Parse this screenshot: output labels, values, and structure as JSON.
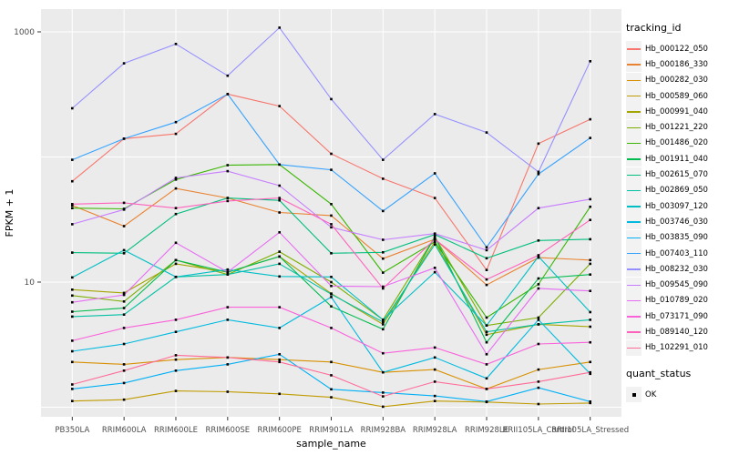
{
  "chart_data": {
    "type": "line",
    "title": "",
    "xlabel": "sample_name",
    "ylabel": "FPKM + 1",
    "y_scale": "log10",
    "ylim": [
      1,
      1300
    ],
    "y_tick_labels": [
      "1000",
      "10"
    ],
    "y_tick_values": [
      1000,
      10
    ],
    "y_gridline_values": [
      1,
      10,
      100,
      1000
    ],
    "grid": true,
    "legend_position": "right",
    "panel_bg": "#ebebeb",
    "grid_color": "#ffffff",
    "axis_text_color": "#4d4d4d",
    "tick_color": "#333333",
    "point_color": "#000000",
    "categories": [
      "PB350LA",
      "RRIM600LA",
      "RRIM600LE",
      "RRIM600SE",
      "RRIM600PE",
      "RRIM901LA",
      "RRIM928BA",
      "RRIM928LA",
      "RRIM928LE",
      "RRII105LA_Control",
      "RRII105LA_Stressed"
    ],
    "series": [
      {
        "name": "Hb_000122_050",
        "color": "#F8766D",
        "values": [
          64,
          140,
          153,
          318,
          255,
          106,
          67,
          47,
          12.5,
          128,
          200
        ]
      },
      {
        "name": "Hb_000186_330",
        "color": "#EA8331",
        "values": [
          41,
          28,
          56,
          47,
          36,
          34,
          15.4,
          22,
          9.5,
          15.7,
          15
        ]
      },
      {
        "name": "Hb_000282_030",
        "color": "#D89000",
        "values": [
          2.3,
          2.2,
          2.4,
          2.5,
          2.4,
          2.3,
          1.9,
          2.0,
          1.4,
          2.0,
          2.3
        ]
      },
      {
        "name": "Hb_000589_060",
        "color": "#C09B00",
        "values": [
          1.12,
          1.15,
          1.35,
          1.33,
          1.28,
          1.2,
          1.01,
          1.12,
          1.1,
          1.06,
          1.08
        ]
      },
      {
        "name": "Hb_000991_040",
        "color": "#A3A500",
        "values": [
          8.7,
          8.2,
          14,
          12,
          16,
          8.1,
          4.6,
          21,
          3.8,
          4.6,
          4.4
        ]
      },
      {
        "name": "Hb_001221_220",
        "color": "#7CAE00",
        "values": [
          7.8,
          7.0,
          15,
          11.5,
          17.5,
          10,
          5.0,
          23,
          4.5,
          5.2,
          14
        ]
      },
      {
        "name": "Hb_001486_020",
        "color": "#39B600",
        "values": [
          39,
          38.5,
          66,
          86,
          87,
          42,
          11.9,
          21,
          5.2,
          9.6,
          40
        ]
      },
      {
        "name": "Hb_001911_040",
        "color": "#00BB4E",
        "values": [
          5.8,
          6.2,
          15,
          12,
          16,
          6.4,
          4.2,
          23,
          3.3,
          10.7,
          11.5
        ]
      },
      {
        "name": "Hb_002615_070",
        "color": "#00BF7D",
        "values": [
          17.2,
          17,
          35,
          47,
          45,
          17,
          17.3,
          24,
          15.5,
          21.5,
          22
        ]
      },
      {
        "name": "Hb_002869_050",
        "color": "#00C1A3",
        "values": [
          5.3,
          5.5,
          11,
          11.5,
          14,
          8.0,
          4.8,
          20,
          4.0,
          4.6,
          5.0
        ]
      },
      {
        "name": "Hb_003097_120",
        "color": "#00BFC4",
        "values": [
          10.9,
          18,
          11,
          12.6,
          11.1,
          11,
          5.0,
          12,
          4.5,
          16,
          5.75
        ]
      },
      {
        "name": "Hb_003746_030",
        "color": "#00BAE0",
        "values": [
          2.8,
          3.2,
          4.0,
          5.0,
          4.3,
          7.6,
          1.9,
          2.5,
          1.7,
          5.0,
          1.85
        ]
      },
      {
        "name": "Hb_003835_090",
        "color": "#00B0F6",
        "values": [
          1.4,
          1.56,
          1.96,
          2.2,
          2.65,
          1.39,
          1.31,
          1.23,
          1.11,
          1.43,
          1.11
        ]
      },
      {
        "name": "Hb_007403_110",
        "color": "#35A2FF",
        "values": [
          95,
          140,
          190,
          318,
          87,
          79,
          37,
          74,
          19,
          73,
          142
        ]
      },
      {
        "name": "Hb_008232_030",
        "color": "#9590FF",
        "values": [
          245,
          560,
          800,
          446,
          1080,
          290,
          95,
          220,
          157,
          76,
          582
        ]
      },
      {
        "name": "Hb_009545_090",
        "color": "#C77CFF",
        "values": [
          29,
          38,
          68,
          77,
          59,
          27.4,
          21.8,
          24.4,
          18,
          39,
          46
        ]
      },
      {
        "name": "Hb_010789_020",
        "color": "#E76BF3",
        "values": [
          6.9,
          7.9,
          20.6,
          12,
          25,
          9.3,
          9.2,
          13,
          2.65,
          8.9,
          8.5
        ]
      },
      {
        "name": "Hb_073171_090",
        "color": "#FA62DB",
        "values": [
          3.4,
          4.3,
          5.0,
          6.3,
          6.3,
          4.3,
          2.7,
          3.0,
          2.2,
          3.2,
          3.3
        ]
      },
      {
        "name": "Hb_089140_120",
        "color": "#FF62BC",
        "values": [
          42,
          43,
          39,
          44.5,
          47,
          29,
          8.9,
          22,
          10.5,
          16.4,
          31.4
        ]
      },
      {
        "name": "Hb_102291_010",
        "color": "#FF6A98",
        "values": [
          1.52,
          1.96,
          2.6,
          2.5,
          2.3,
          1.8,
          1.22,
          1.6,
          1.4,
          1.6,
          1.9
        ]
      }
    ],
    "legend": {
      "tracking_title": "tracking_id",
      "quant_title": "quant_status",
      "quant_items": [
        "OK"
      ]
    }
  }
}
